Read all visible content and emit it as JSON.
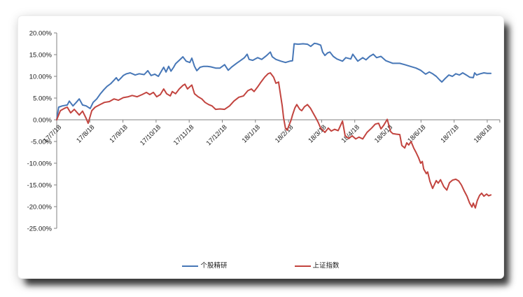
{
  "chart_data": {
    "type": "line",
    "title": "",
    "xlabel": "",
    "ylabel": "",
    "grid": false,
    "legend_position": "bottom",
    "ylim": [
      -25,
      20
    ],
    "xlim": [
      0,
      13.38
    ],
    "y_axis": {
      "ticks": [
        20,
        15,
        10,
        5,
        0,
        -5,
        -10,
        -15,
        -20,
        -25
      ],
      "tick_labels": [
        "20.00%",
        "15.00%",
        "10.00%",
        "5.00%",
        "0.00%",
        "-5.00%",
        "-10.00%",
        "-15.00%",
        "-20.00%",
        "-25.00%"
      ]
    },
    "x_axis": {
      "tick_labels": [
        "17/7/18",
        "17/8/18",
        "17/9/18",
        "17/10/18",
        "17/11/18",
        "17/12/18",
        "18/1/18",
        "18/2/18",
        "18/3/18",
        "18/4/18",
        "18/5/18",
        "18/6/18",
        "18/7/18",
        "18/8/18"
      ],
      "label_rotation_deg": -45
    },
    "axis_color": "#808080",
    "series": [
      {
        "name": "个股精研",
        "color": "#4777B7",
        "points": [
          [
            0,
            0
          ],
          [
            0.06,
            2.9
          ],
          [
            0.17,
            3.2
          ],
          [
            0.32,
            3.4
          ],
          [
            0.38,
            4.3
          ],
          [
            0.49,
            3.2
          ],
          [
            0.59,
            4.0
          ],
          [
            0.68,
            4.8
          ],
          [
            0.78,
            3.4
          ],
          [
            0.89,
            3.2
          ],
          [
            1.01,
            2.6
          ],
          [
            1.1,
            4.0
          ],
          [
            1.21,
            4.8
          ],
          [
            1.31,
            5.9
          ],
          [
            1.42,
            6.9
          ],
          [
            1.52,
            7.7
          ],
          [
            1.63,
            8.3
          ],
          [
            1.73,
            9.1
          ],
          [
            1.8,
            9.7
          ],
          [
            1.86,
            9.0
          ],
          [
            1.95,
            9.7
          ],
          [
            2.01,
            10.2
          ],
          [
            2.11,
            10.6
          ],
          [
            2.22,
            10.8
          ],
          [
            2.37,
            10.3
          ],
          [
            2.49,
            10.6
          ],
          [
            2.64,
            10.4
          ],
          [
            2.75,
            11.3
          ],
          [
            2.85,
            10.2
          ],
          [
            2.96,
            10.5
          ],
          [
            3.07,
            10.0
          ],
          [
            3.17,
            11.3
          ],
          [
            3.23,
            12.1
          ],
          [
            3.3,
            11.0
          ],
          [
            3.38,
            12.3
          ],
          [
            3.45,
            11.2
          ],
          [
            3.53,
            12.1
          ],
          [
            3.59,
            12.9
          ],
          [
            3.7,
            13.7
          ],
          [
            3.81,
            14.5
          ],
          [
            3.91,
            13.5
          ],
          [
            4.02,
            13.2
          ],
          [
            4.08,
            14.2
          ],
          [
            4.16,
            12.3
          ],
          [
            4.23,
            11.3
          ],
          [
            4.33,
            12.1
          ],
          [
            4.44,
            12.3
          ],
          [
            4.55,
            12.3
          ],
          [
            4.65,
            12.2
          ],
          [
            4.8,
            11.9
          ],
          [
            4.93,
            11.9
          ],
          [
            5.07,
            12.7
          ],
          [
            5.18,
            11.4
          ],
          [
            5.29,
            12.2
          ],
          [
            5.43,
            13.0
          ],
          [
            5.56,
            13.7
          ],
          [
            5.67,
            14.3
          ],
          [
            5.75,
            15.1
          ],
          [
            5.81,
            13.9
          ],
          [
            5.92,
            13.7
          ],
          [
            6.07,
            14.3
          ],
          [
            6.19,
            13.9
          ],
          [
            6.34,
            14.8
          ],
          [
            6.45,
            15.6
          ],
          [
            6.51,
            14.5
          ],
          [
            6.62,
            13.9
          ],
          [
            6.77,
            13.5
          ],
          [
            6.91,
            13.2
          ],
          [
            7.04,
            13.5
          ],
          [
            7.12,
            13.6
          ],
          [
            7.17,
            17.5
          ],
          [
            7.29,
            17.4
          ],
          [
            7.44,
            17.5
          ],
          [
            7.57,
            17.4
          ],
          [
            7.67,
            16.9
          ],
          [
            7.78,
            17.6
          ],
          [
            7.86,
            17.5
          ],
          [
            7.97,
            17.2
          ],
          [
            8.03,
            15.6
          ],
          [
            8.1,
            14.8
          ],
          [
            8.18,
            15.4
          ],
          [
            8.25,
            15.6
          ],
          [
            8.35,
            14.6
          ],
          [
            8.46,
            14.0
          ],
          [
            8.63,
            13.5
          ],
          [
            8.73,
            14.3
          ],
          [
            8.88,
            14.0
          ],
          [
            8.94,
            15.1
          ],
          [
            9.09,
            13.5
          ],
          [
            9.24,
            14.3
          ],
          [
            9.34,
            13.8
          ],
          [
            9.45,
            14.6
          ],
          [
            9.56,
            15.1
          ],
          [
            9.66,
            14.3
          ],
          [
            9.79,
            14.6
          ],
          [
            9.94,
            13.6
          ],
          [
            10.15,
            13.0
          ],
          [
            10.36,
            13.0
          ],
          [
            10.51,
            12.7
          ],
          [
            10.63,
            12.4
          ],
          [
            10.85,
            11.9
          ],
          [
            10.99,
            11.4
          ],
          [
            11.14,
            10.5
          ],
          [
            11.25,
            11.0
          ],
          [
            11.35,
            10.6
          ],
          [
            11.46,
            10.0
          ],
          [
            11.56,
            9.2
          ],
          [
            11.63,
            8.7
          ],
          [
            11.73,
            9.5
          ],
          [
            11.84,
            10.3
          ],
          [
            11.95,
            10.0
          ],
          [
            12.05,
            10.6
          ],
          [
            12.16,
            10.3
          ],
          [
            12.26,
            10.8
          ],
          [
            12.37,
            10.3
          ],
          [
            12.47,
            9.8
          ],
          [
            12.58,
            9.7
          ],
          [
            12.62,
            10.8
          ],
          [
            12.68,
            10.3
          ],
          [
            12.79,
            10.6
          ],
          [
            12.9,
            10.8
          ],
          [
            13.0,
            10.7
          ],
          [
            13.11,
            10.7
          ]
        ]
      },
      {
        "name": "上证指数",
        "color": "#C2443F",
        "points": [
          [
            0,
            0
          ],
          [
            0.11,
            2.1
          ],
          [
            0.25,
            2.7
          ],
          [
            0.32,
            2.9
          ],
          [
            0.42,
            1.6
          ],
          [
            0.53,
            2.4
          ],
          [
            0.68,
            1.1
          ],
          [
            0.78,
            2.0
          ],
          [
            0.89,
            0.3
          ],
          [
            0.95,
            -0.8
          ],
          [
            1.06,
            2.1
          ],
          [
            1.16,
            2.9
          ],
          [
            1.31,
            3.5
          ],
          [
            1.44,
            4.0
          ],
          [
            1.59,
            4.2
          ],
          [
            1.73,
            4.8
          ],
          [
            1.86,
            4.5
          ],
          [
            2.01,
            5.1
          ],
          [
            2.16,
            5.3
          ],
          [
            2.28,
            5.6
          ],
          [
            2.43,
            5.3
          ],
          [
            2.58,
            5.8
          ],
          [
            2.71,
            6.3
          ],
          [
            2.81,
            5.8
          ],
          [
            2.92,
            6.3
          ],
          [
            3.02,
            5.3
          ],
          [
            3.13,
            5.8
          ],
          [
            3.23,
            7.1
          ],
          [
            3.32,
            6.0
          ],
          [
            3.43,
            5.5
          ],
          [
            3.49,
            6.5
          ],
          [
            3.59,
            6.0
          ],
          [
            3.7,
            7.1
          ],
          [
            3.81,
            7.9
          ],
          [
            3.87,
            8.2
          ],
          [
            3.95,
            7.1
          ],
          [
            4.02,
            7.6
          ],
          [
            4.08,
            8.0
          ],
          [
            4.16,
            6.0
          ],
          [
            4.27,
            5.3
          ],
          [
            4.38,
            4.8
          ],
          [
            4.48,
            4.0
          ],
          [
            4.59,
            3.5
          ],
          [
            4.69,
            3.2
          ],
          [
            4.8,
            2.4
          ],
          [
            4.93,
            2.5
          ],
          [
            5.07,
            2.4
          ],
          [
            5.22,
            3.2
          ],
          [
            5.35,
            4.3
          ],
          [
            5.5,
            5.2
          ],
          [
            5.64,
            5.5
          ],
          [
            5.77,
            6.7
          ],
          [
            5.88,
            7.1
          ],
          [
            5.96,
            6.5
          ],
          [
            6.07,
            7.6
          ],
          [
            6.17,
            8.7
          ],
          [
            6.28,
            9.8
          ],
          [
            6.38,
            10.6
          ],
          [
            6.45,
            10.8
          ],
          [
            6.55,
            9.8
          ],
          [
            6.62,
            8.4
          ],
          [
            6.7,
            8.7
          ],
          [
            6.77,
            5.2
          ],
          [
            6.81,
            3.2
          ],
          [
            6.85,
            0.5
          ],
          [
            6.91,
            -2.0
          ],
          [
            6.96,
            -2.4
          ],
          [
            7.02,
            -1.2
          ],
          [
            7.08,
            0.0
          ],
          [
            7.12,
            1.1
          ],
          [
            7.19,
            2.7
          ],
          [
            7.25,
            3.5
          ],
          [
            7.34,
            2.4
          ],
          [
            7.4,
            2.1
          ],
          [
            7.48,
            3.0
          ],
          [
            7.57,
            3.5
          ],
          [
            7.66,
            2.7
          ],
          [
            7.74,
            1.6
          ],
          [
            7.82,
            0.5
          ],
          [
            7.89,
            -0.5
          ],
          [
            7.97,
            -1.9
          ],
          [
            8.1,
            -2.9
          ],
          [
            8.2,
            -1.9
          ],
          [
            8.29,
            -2.6
          ],
          [
            8.39,
            -2.2
          ],
          [
            8.5,
            -2.5
          ],
          [
            8.63,
            -0.3
          ],
          [
            8.71,
            -3.7
          ],
          [
            8.82,
            -4.3
          ],
          [
            8.92,
            -3.7
          ],
          [
            9.03,
            -4.4
          ],
          [
            9.13,
            -4.0
          ],
          [
            9.24,
            -4.4
          ],
          [
            9.37,
            -2.9
          ],
          [
            9.51,
            -1.9
          ],
          [
            9.62,
            -1.0
          ],
          [
            9.72,
            -0.8
          ],
          [
            9.79,
            -2.1
          ],
          [
            9.87,
            -1.3
          ],
          [
            9.98,
            0.1
          ],
          [
            10.08,
            -2.7
          ],
          [
            10.15,
            -3.2
          ],
          [
            10.25,
            -3.3
          ],
          [
            10.36,
            -3.4
          ],
          [
            10.42,
            -5.9
          ],
          [
            10.51,
            -6.5
          ],
          [
            10.57,
            -5.3
          ],
          [
            10.63,
            -5.8
          ],
          [
            10.7,
            -5.0
          ],
          [
            10.78,
            -6.5
          ],
          [
            10.85,
            -7.5
          ],
          [
            10.93,
            -8.8
          ],
          [
            10.99,
            -10.0
          ],
          [
            11.04,
            -9.6
          ],
          [
            11.08,
            -11.3
          ],
          [
            11.16,
            -12.4
          ],
          [
            11.2,
            -12.0
          ],
          [
            11.27,
            -14.2
          ],
          [
            11.35,
            -15.8
          ],
          [
            11.46,
            -14.0
          ],
          [
            11.52,
            -14.6
          ],
          [
            11.59,
            -13.8
          ],
          [
            11.69,
            -15.4
          ],
          [
            11.78,
            -16.2
          ],
          [
            11.86,
            -14.5
          ],
          [
            11.95,
            -13.9
          ],
          [
            12.05,
            -13.7
          ],
          [
            12.14,
            -14.1
          ],
          [
            12.22,
            -15.0
          ],
          [
            12.3,
            -16.3
          ],
          [
            12.39,
            -17.6
          ],
          [
            12.47,
            -19.2
          ],
          [
            12.54,
            -20.1
          ],
          [
            12.58,
            -19.2
          ],
          [
            12.64,
            -20.3
          ],
          [
            12.7,
            -18.6
          ],
          [
            12.77,
            -17.4
          ],
          [
            12.83,
            -16.9
          ],
          [
            12.9,
            -17.6
          ],
          [
            12.98,
            -17.1
          ],
          [
            13.04,
            -17.5
          ],
          [
            13.11,
            -17.3
          ]
        ]
      }
    ]
  },
  "legend": {
    "items": [
      {
        "label": "个股精研",
        "color": "#4777B7"
      },
      {
        "label": "上证指数",
        "color": "#C2443F"
      }
    ]
  }
}
